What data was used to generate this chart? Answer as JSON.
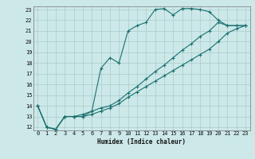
{
  "xlabel": "Humidex (Indice chaleur)",
  "bg_color": "#cce8e8",
  "grid_color": "#aacccc",
  "line_color": "#1a7070",
  "xlim": [
    -0.5,
    23.5
  ],
  "ylim": [
    11.7,
    23.3
  ],
  "xticks": [
    0,
    1,
    2,
    3,
    4,
    5,
    6,
    7,
    8,
    9,
    10,
    11,
    12,
    13,
    14,
    15,
    16,
    17,
    18,
    19,
    20,
    21,
    22,
    23
  ],
  "yticks": [
    12,
    13,
    14,
    15,
    16,
    17,
    18,
    19,
    20,
    21,
    22,
    23
  ],
  "line1_x": [
    0,
    1,
    2,
    3,
    4,
    5,
    6,
    7,
    8,
    9,
    10,
    11,
    12,
    13,
    14,
    15,
    16,
    17,
    18,
    19,
    20,
    21,
    22,
    23
  ],
  "line1_y": [
    14,
    12,
    11.8,
    13,
    13,
    13,
    13.5,
    17.5,
    18.5,
    18,
    21,
    21.5,
    21.8,
    23,
    23.1,
    22.5,
    23.1,
    23.1,
    23,
    22.8,
    22,
    21.5,
    21.5,
    21.5
  ],
  "line2_x": [
    0,
    1,
    2,
    3,
    4,
    5,
    6,
    7,
    8,
    9,
    10,
    11,
    12,
    13,
    14,
    15,
    16,
    17,
    18,
    19,
    20,
    21,
    22,
    23
  ],
  "line2_y": [
    14,
    12,
    11.8,
    13,
    13,
    13.2,
    13.5,
    13.8,
    14,
    14.5,
    15.2,
    15.8,
    16.5,
    17.2,
    17.8,
    18.5,
    19.2,
    19.8,
    20.5,
    21,
    21.8,
    21.5,
    21.5,
    21.5
  ],
  "line3_x": [
    0,
    1,
    2,
    3,
    4,
    5,
    6,
    7,
    8,
    9,
    10,
    11,
    12,
    13,
    14,
    15,
    16,
    17,
    18,
    19,
    20,
    21,
    22,
    23
  ],
  "line3_y": [
    14,
    12,
    11.8,
    13,
    13,
    13,
    13.2,
    13.5,
    13.8,
    14.2,
    14.8,
    15.3,
    15.8,
    16.3,
    16.8,
    17.3,
    17.8,
    18.3,
    18.8,
    19.3,
    20,
    20.8,
    21.2,
    21.5
  ]
}
